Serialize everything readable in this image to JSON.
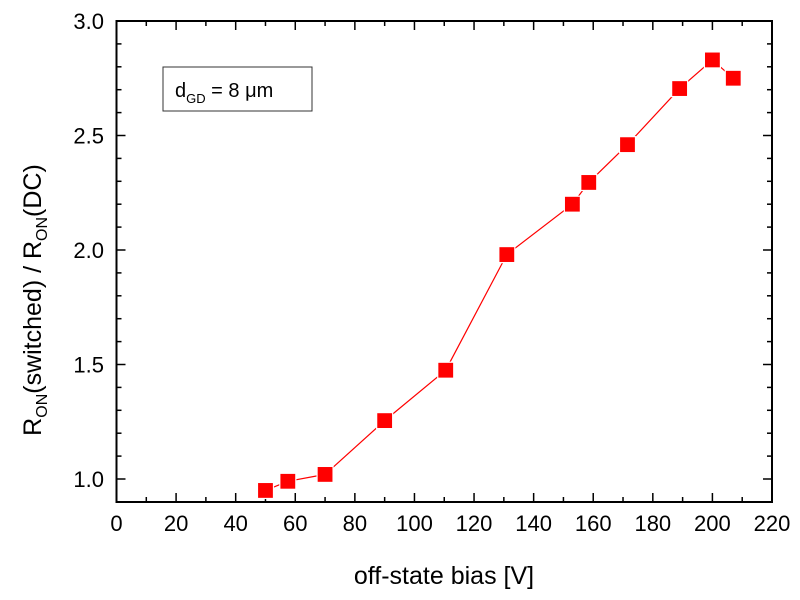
{
  "chart_data": {
    "type": "line",
    "title": "",
    "xlabel": "off-state bias [V]",
    "ylabel": {
      "part1_main": "R",
      "part1_sub": "ON",
      "part1_rest": "(switched) / R",
      "part2_sub": "ON",
      "part2_rest": "(DC)"
    },
    "xlim": [
      0,
      220
    ],
    "ylim": [
      0.9,
      3.0
    ],
    "x_ticks": [
      0,
      20,
      40,
      60,
      80,
      100,
      120,
      140,
      160,
      180,
      200,
      220
    ],
    "x_tick_labels": [
      "0",
      "20",
      "40",
      "60",
      "80",
      "100",
      "120",
      "140",
      "160",
      "180",
      "200",
      "220"
    ],
    "x_minor_step": 10,
    "y_ticks": [
      1.0,
      1.5,
      2.0,
      2.5,
      3.0
    ],
    "y_tick_labels": [
      "1.0",
      "1.5",
      "2.0",
      "2.5",
      "3.0"
    ],
    "y_minor_step": 0.1,
    "grid": false,
    "legend": null,
    "annotation": {
      "main": "d",
      "sub": "GD",
      "rest": " = 8 μm",
      "placement": "top-left"
    },
    "series": [
      {
        "name": "dGD = 8 μm",
        "color": "#ff0000",
        "marker": "square",
        "x": [
          50,
          57.5,
          70,
          90,
          110.5,
          131,
          153,
          158.5,
          171.5,
          189,
          200,
          207
        ],
        "y": [
          0.95,
          0.99,
          1.02,
          1.255,
          1.475,
          1.98,
          2.2,
          2.295,
          2.46,
          2.705,
          2.83,
          2.75
        ]
      }
    ]
  }
}
